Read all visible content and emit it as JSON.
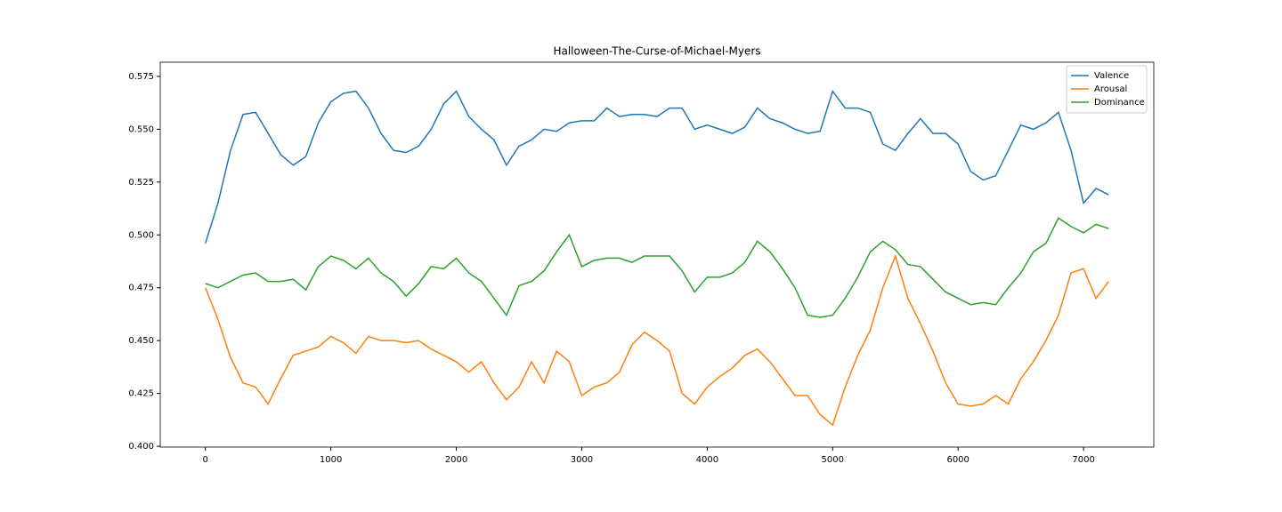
{
  "chart_data": {
    "type": "line",
    "title": "Halloween-The-Curse-of-Michael-Myers",
    "x": [
      0,
      100,
      200,
      300,
      400,
      500,
      600,
      700,
      800,
      900,
      1000,
      1100,
      1200,
      1300,
      1400,
      1500,
      1600,
      1700,
      1800,
      1900,
      2000,
      2100,
      2200,
      2300,
      2400,
      2500,
      2600,
      2700,
      2800,
      2900,
      3000,
      3100,
      3200,
      3300,
      3400,
      3500,
      3600,
      3700,
      3800,
      3900,
      4000,
      4100,
      4200,
      4300,
      4400,
      4500,
      4600,
      4700,
      4800,
      4900,
      5000,
      5100,
      5200,
      5300,
      5400,
      5500,
      5600,
      5700,
      5800,
      5900,
      6000,
      6100,
      6200,
      6300,
      6400,
      6500,
      6600,
      6700,
      6800,
      6900,
      7000,
      7100,
      7200
    ],
    "series": [
      {
        "name": "Valence",
        "color": "#1f77b4",
        "values": [
          0.496,
          0.515,
          0.54,
          0.557,
          0.558,
          0.548,
          0.538,
          0.533,
          0.537,
          0.553,
          0.563,
          0.567,
          0.568,
          0.56,
          0.548,
          0.54,
          0.539,
          0.542,
          0.55,
          0.562,
          0.568,
          0.556,
          0.55,
          0.545,
          0.533,
          0.542,
          0.545,
          0.55,
          0.549,
          0.553,
          0.554,
          0.554,
          0.56,
          0.556,
          0.557,
          0.557,
          0.556,
          0.56,
          0.56,
          0.55,
          0.552,
          0.55,
          0.548,
          0.551,
          0.56,
          0.555,
          0.553,
          0.55,
          0.548,
          0.549,
          0.568,
          0.56,
          0.56,
          0.558,
          0.543,
          0.54,
          0.548,
          0.555,
          0.548,
          0.548,
          0.543,
          0.53,
          0.526,
          0.528,
          0.54,
          0.552,
          0.55,
          0.553,
          0.558,
          0.54,
          0.515,
          0.522,
          0.519
        ]
      },
      {
        "name": "Arousal",
        "color": "#ff7f0e",
        "values": [
          0.475,
          0.46,
          0.442,
          0.43,
          0.428,
          0.42,
          0.432,
          0.443,
          0.445,
          0.447,
          0.452,
          0.449,
          0.444,
          0.452,
          0.45,
          0.45,
          0.449,
          0.45,
          0.446,
          0.443,
          0.44,
          0.435,
          0.44,
          0.43,
          0.422,
          0.428,
          0.44,
          0.43,
          0.445,
          0.44,
          0.424,
          0.428,
          0.43,
          0.435,
          0.448,
          0.454,
          0.45,
          0.445,
          0.425,
          0.42,
          0.428,
          0.433,
          0.437,
          0.443,
          0.446,
          0.44,
          0.432,
          0.424,
          0.424,
          0.415,
          0.41,
          0.428,
          0.443,
          0.455,
          0.475,
          0.49,
          0.47,
          0.458,
          0.445,
          0.43,
          0.42,
          0.419,
          0.42,
          0.424,
          0.42,
          0.432,
          0.44,
          0.45,
          0.462,
          0.482,
          0.484,
          0.47,
          0.478
        ]
      },
      {
        "name": "Dominance",
        "color": "#2ca02c",
        "values": [
          0.477,
          0.475,
          0.478,
          0.481,
          0.482,
          0.478,
          0.478,
          0.479,
          0.474,
          0.485,
          0.49,
          0.488,
          0.484,
          0.489,
          0.482,
          0.478,
          0.471,
          0.477,
          0.485,
          0.484,
          0.489,
          0.482,
          0.478,
          0.47,
          0.462,
          0.476,
          0.478,
          0.483,
          0.492,
          0.5,
          0.485,
          0.488,
          0.489,
          0.489,
          0.487,
          0.49,
          0.49,
          0.49,
          0.483,
          0.473,
          0.48,
          0.48,
          0.482,
          0.487,
          0.497,
          0.492,
          0.484,
          0.475,
          0.462,
          0.461,
          0.462,
          0.47,
          0.48,
          0.492,
          0.497,
          0.493,
          0.486,
          0.485,
          0.479,
          0.473,
          0.47,
          0.467,
          0.468,
          0.467,
          0.475,
          0.482,
          0.492,
          0.496,
          0.508,
          0.504,
          0.501,
          0.505,
          0.503
        ]
      }
    ],
    "xlim": [
      -360,
      7560
    ],
    "xticks": [
      0,
      1000,
      2000,
      3000,
      4000,
      5000,
      6000,
      7000
    ],
    "ylim": [
      0.3996,
      0.5817
    ],
    "yticks": [
      {
        "value": 0.4,
        "label": "0.400"
      },
      0.425,
      {
        "value": 0.45,
        "label": "0.450"
      },
      0.475,
      {
        "value": 0.5,
        "label": "0.500"
      },
      0.525,
      {
        "value": 0.55,
        "label": "0.550"
      },
      0.575
    ],
    "grid": false,
    "legend": "upper right"
  }
}
